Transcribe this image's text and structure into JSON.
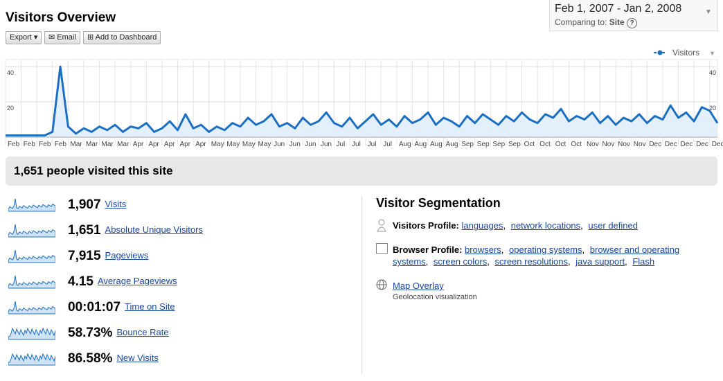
{
  "header": {
    "title": "Visitors Overview",
    "buttons": [
      "Export",
      "Email",
      "Add to Dashboard"
    ]
  },
  "date_range": {
    "range": "Feb 1, 2007 - Jan 2, 2008",
    "comparing_label": "Comparing to:",
    "comparing_value": "Site",
    "help": "?"
  },
  "chart_data": {
    "type": "line",
    "categories": [
      "Feb",
      null,
      "Feb",
      null,
      "Feb",
      null,
      "Feb",
      null,
      "Mar",
      null,
      "Mar",
      null,
      "Mar",
      null,
      "Mar",
      null,
      "Apr",
      null,
      "Apr",
      null,
      "Apr",
      null,
      "Apr",
      null,
      "Apr",
      null,
      "May",
      null,
      "May",
      null,
      "May",
      null,
      "May",
      null,
      "Jun",
      null,
      "Jun",
      null,
      "Jun",
      null,
      "Jun",
      null,
      "Jul",
      null,
      "Jul",
      null,
      "Jul",
      null,
      "Jul",
      null,
      "Aug",
      null,
      "Aug",
      null,
      "Aug",
      null,
      "Aug",
      null,
      "Sep",
      null,
      "Sep",
      null,
      "Sep",
      null,
      "Sep",
      null,
      "Oct",
      null,
      "Oct",
      null,
      "Oct",
      null,
      "Oct",
      null,
      "Nov",
      null,
      "Nov",
      null,
      "Nov",
      null,
      "Nov",
      null,
      "Dec",
      null,
      "Dec",
      null,
      "Dec",
      null,
      "Dec",
      null,
      "Dec",
      null
    ],
    "series": [
      {
        "name": "Visitors",
        "color": "#1a6fc4",
        "values": [
          1,
          1,
          1,
          1,
          1,
          1,
          3,
          40,
          6,
          2,
          5,
          3,
          6,
          4,
          7,
          3,
          6,
          5,
          8,
          3,
          5,
          9,
          4,
          13,
          5,
          7,
          3,
          6,
          4,
          8,
          6,
          11,
          7,
          9,
          13,
          6,
          8,
          5,
          11,
          7,
          9,
          14,
          8,
          6,
          11,
          5,
          9,
          13,
          7,
          10,
          6,
          12,
          8,
          10,
          14,
          7,
          11,
          9,
          6,
          12,
          8,
          13,
          10,
          7,
          12,
          9,
          14,
          10,
          8,
          13,
          11,
          16,
          9,
          12,
          10,
          14,
          8,
          12,
          7,
          11,
          9,
          13,
          8,
          12,
          10,
          18,
          11,
          14,
          9,
          17,
          15,
          8
        ]
      }
    ],
    "ylim": [
      0,
      44
    ],
    "yticks": [
      20,
      40
    ],
    "grid": true,
    "legend": "top-right"
  },
  "summary": "1,651 people visited this site",
  "metrics": [
    {
      "value": "1,907",
      "label": "Visits"
    },
    {
      "value": "1,651",
      "label": "Absolute Unique Visitors"
    },
    {
      "value": "7,915",
      "label": "Pageviews"
    },
    {
      "value": "4.15",
      "label": "Average Pageviews"
    },
    {
      "value": "00:01:07",
      "label": "Time on Site"
    },
    {
      "value": "58.73%",
      "label": "Bounce Rate"
    },
    {
      "value": "86.58%",
      "label": "New Visits"
    }
  ],
  "segmentation": {
    "title": "Visitor Segmentation",
    "visitors_profile": {
      "label": "Visitors Profile:",
      "links": [
        "languages",
        "network locations",
        "user defined"
      ]
    },
    "browser_profile": {
      "label": "Browser Profile:",
      "links": [
        "browsers",
        "operating systems",
        "browser and operating systems",
        "screen colors",
        "screen resolutions",
        "java support",
        "Flash"
      ]
    },
    "map_overlay": {
      "label": "Map Overlay",
      "description": "Geolocation visualization"
    }
  }
}
